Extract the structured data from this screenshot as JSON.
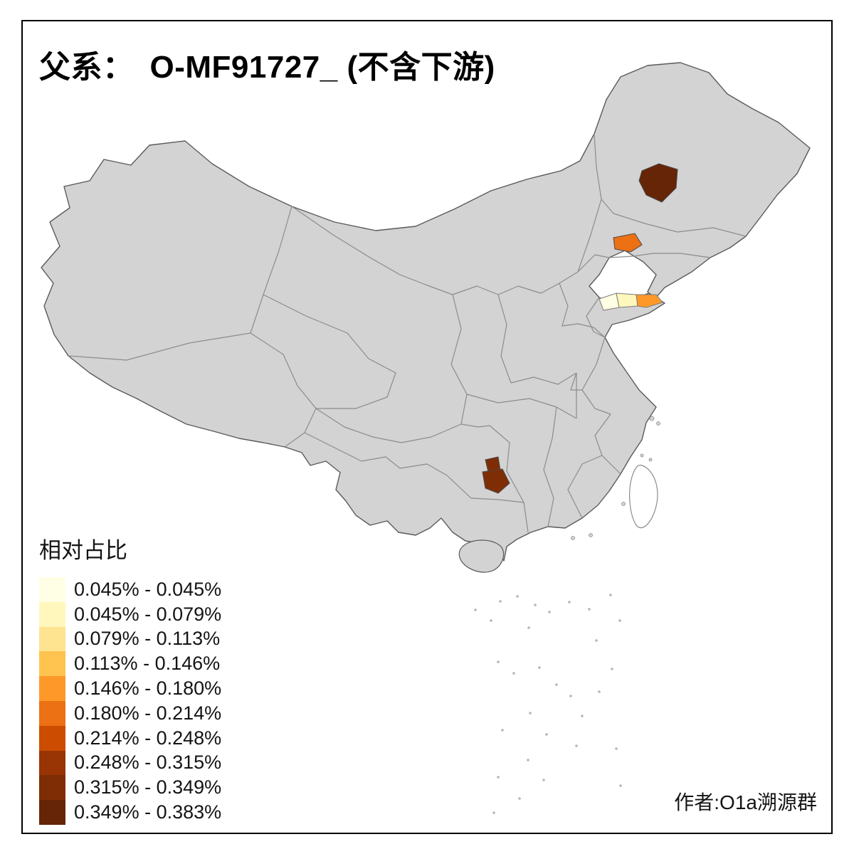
{
  "title": {
    "prefix": "父系：",
    "main": "O-MF91727_ (不含下游)"
  },
  "legend": {
    "title": "相对占比",
    "bins": [
      {
        "label": "0.045% - 0.045%",
        "color": "#FFFFE5"
      },
      {
        "label": "0.045% - 0.079%",
        "color": "#FFF7BC"
      },
      {
        "label": "0.079% - 0.113%",
        "color": "#FEE391"
      },
      {
        "label": "0.113% - 0.146%",
        "color": "#FEC44F"
      },
      {
        "label": "0.146% - 0.180%",
        "color": "#FE9929"
      },
      {
        "label": "0.180% - 0.214%",
        "color": "#EC7014"
      },
      {
        "label": "0.214% - 0.248%",
        "color": "#CC4C02"
      },
      {
        "label": "0.248% - 0.315%",
        "color": "#993404"
      },
      {
        "label": "0.315% - 0.349%",
        "color": "#7E2D04"
      },
      {
        "label": "0.349% - 0.383%",
        "color": "#662506"
      }
    ]
  },
  "attribution": {
    "text": "作者:O1a溯源群"
  },
  "map": {
    "base_fill": "#d3d3d3",
    "country_border_color": "#5a5a5a",
    "province_border_color": "#8c8c8c",
    "regions": [
      {
        "name": "northeast-jilin-prefecture",
        "color": "#662506"
      },
      {
        "name": "liaoning-coastal-prefecture",
        "color": "#EC7014"
      },
      {
        "name": "shandong-west-prefecture",
        "color": "#FFFFE5"
      },
      {
        "name": "shandong-mid-prefecture",
        "color": "#FFF7BC"
      },
      {
        "name": "shandong-east-tip-prefecture",
        "color": "#FE9929"
      },
      {
        "name": "guizhou-north-prefecture",
        "color": "#7E2D04"
      },
      {
        "name": "guizhou-south-prefecture",
        "color": "#7E2D04"
      }
    ]
  }
}
